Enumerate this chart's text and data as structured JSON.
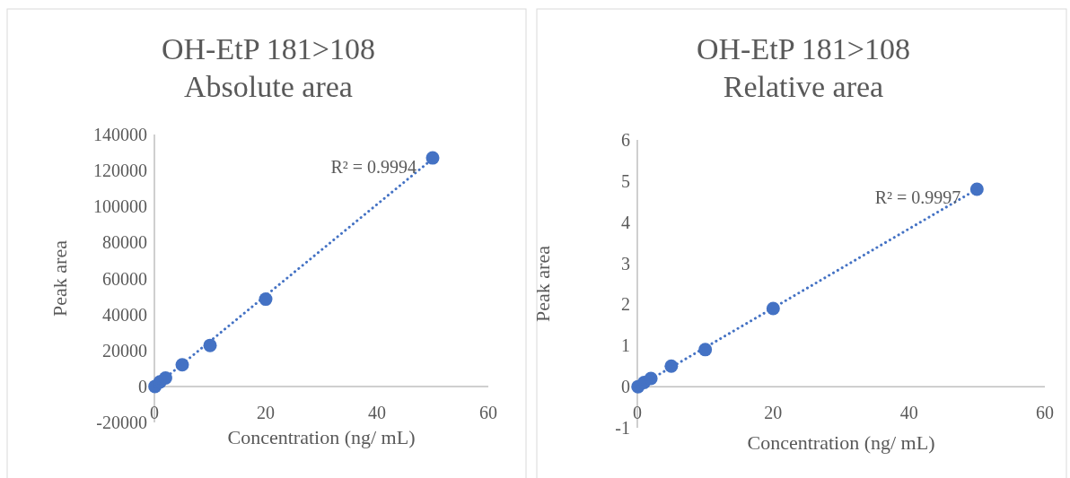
{
  "chart_data": [
    {
      "type": "scatter",
      "title": "OH-EtP 181>108\nAbsolute area",
      "xlabel": "Concentration (ng/ mL)",
      "ylabel": "Peak area",
      "xlim": [
        0,
        60
      ],
      "xticks": [
        0,
        20,
        40,
        60
      ],
      "ylim": [
        -20000,
        140000
      ],
      "yticks": [
        -20000,
        0,
        20000,
        40000,
        60000,
        80000,
        100000,
        120000,
        140000
      ],
      "grid": false,
      "series": [
        {
          "color": "#4472c4",
          "marker": "circle",
          "x": [
            0.1,
            1,
            2,
            5,
            10,
            20,
            50
          ],
          "values": [
            0,
            2500,
            4700,
            12000,
            22800,
            48500,
            127000
          ]
        },
        {
          "type": "line",
          "color": "#4472c4",
          "line_style": "dotted",
          "x": [
            0.1,
            50
          ],
          "values": [
            0,
            126500
          ]
        }
      ],
      "annotations": [
        {
          "text": "R² = 0.9994",
          "x": 50,
          "y": 126500
        }
      ]
    },
    {
      "type": "scatter",
      "title": "OH-EtP 181>108\nRelative area",
      "xlabel": "Concentration (ng/ mL)",
      "ylabel": "Peak area",
      "xlim": [
        0,
        60
      ],
      "xticks": [
        0,
        20,
        40,
        60
      ],
      "ylim": [
        -1,
        6
      ],
      "yticks": [
        -1,
        0,
        1,
        2,
        3,
        4,
        5,
        6
      ],
      "grid": false,
      "series": [
        {
          "color": "#4472c4",
          "marker": "circle",
          "x": [
            0.1,
            1,
            2,
            5,
            10,
            20,
            50
          ],
          "values": [
            0,
            0.1,
            0.2,
            0.5,
            0.9,
            1.9,
            4.8
          ]
        },
        {
          "type": "line",
          "color": "#4472c4",
          "line_style": "dotted",
          "x": [
            0.1,
            50
          ],
          "values": [
            0,
            4.8
          ]
        }
      ],
      "annotations": [
        {
          "text": "R² = 0.9997",
          "x": 50,
          "y": 4.8
        }
      ]
    }
  ]
}
